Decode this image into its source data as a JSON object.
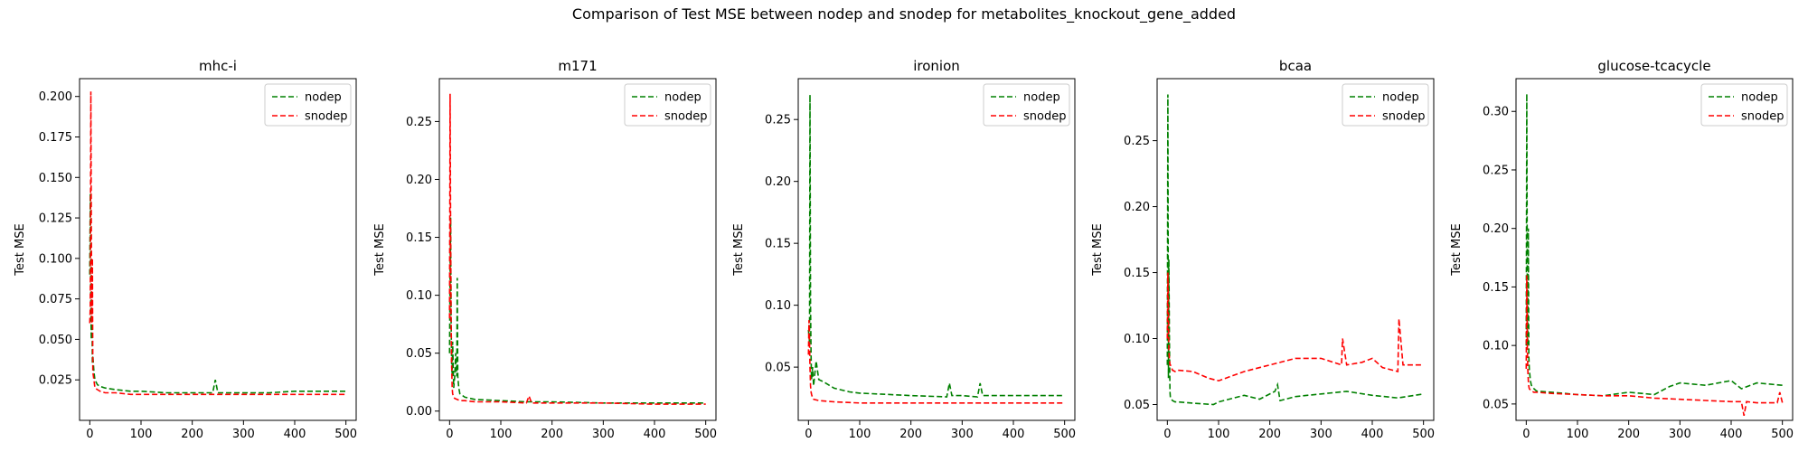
{
  "figure": {
    "suptitle": "Comparison of Test MSE between nodep and snodep for metabolites_knockout_gene_added"
  },
  "colors": {
    "nodep": "#008000",
    "snodep": "#ff0000"
  },
  "chart_data": [
    {
      "type": "line",
      "title": "mhc-i",
      "xlabel": "",
      "ylabel": "Test MSE",
      "xlim": [
        -20,
        520
      ],
      "ylim": [
        0.0,
        0.211
      ],
      "xticks": [
        0,
        100,
        200,
        300,
        400,
        500
      ],
      "yticks": [
        0.025,
        0.05,
        0.075,
        0.1,
        0.125,
        0.15,
        0.175,
        0.2
      ],
      "ytick_labels": [
        "0.025",
        "0.050",
        "0.075",
        "0.100",
        "0.125",
        "0.150",
        "0.175",
        "0.200"
      ],
      "legend": "top-right",
      "series": [
        {
          "name": "nodep",
          "color": "#008000",
          "linestyle": "dashed",
          "x": [
            0,
            1,
            2,
            3,
            4,
            5,
            6,
            8,
            10,
            15,
            20,
            30,
            50,
            80,
            100,
            150,
            200,
            240,
            245,
            250,
            260,
            300,
            350,
            400,
            450,
            500
          ],
          "y": [
            0.09,
            0.14,
            0.07,
            0.05,
            0.08,
            0.035,
            0.04,
            0.03,
            0.025,
            0.022,
            0.021,
            0.02,
            0.019,
            0.018,
            0.018,
            0.017,
            0.017,
            0.017,
            0.025,
            0.017,
            0.017,
            0.017,
            0.017,
            0.018,
            0.018,
            0.018
          ]
        },
        {
          "name": "snodep",
          "color": "#ff0000",
          "linestyle": "dashed",
          "x": [
            0,
            1,
            2,
            3,
            4,
            5,
            6,
            8,
            10,
            15,
            20,
            30,
            50,
            80,
            100,
            150,
            200,
            250,
            300,
            350,
            400,
            450,
            500
          ],
          "y": [
            0.06,
            0.07,
            0.203,
            0.12,
            0.06,
            0.1,
            0.03,
            0.025,
            0.02,
            0.019,
            0.018,
            0.017,
            0.017,
            0.016,
            0.016,
            0.016,
            0.016,
            0.016,
            0.016,
            0.016,
            0.016,
            0.016,
            0.016
          ]
        }
      ]
    },
    {
      "type": "line",
      "title": "m171",
      "xlabel": "",
      "ylabel": "Test MSE",
      "xlim": [
        -20,
        520
      ],
      "ylim": [
        -0.008,
        0.287
      ],
      "xticks": [
        0,
        100,
        200,
        300,
        400,
        500
      ],
      "yticks": [
        0.0,
        0.05,
        0.1,
        0.15,
        0.2,
        0.25
      ],
      "ytick_labels": [
        "0.00",
        "0.05",
        "0.10",
        "0.15",
        "0.20",
        "0.25"
      ],
      "legend": "top-right",
      "series": [
        {
          "name": "nodep",
          "color": "#008000",
          "linestyle": "dashed",
          "x": [
            0,
            1,
            2,
            3,
            4,
            5,
            6,
            8,
            10,
            12,
            14,
            15,
            16,
            18,
            20,
            30,
            50,
            100,
            150,
            200,
            300,
            400,
            500
          ],
          "y": [
            0.05,
            0.12,
            0.167,
            0.08,
            0.04,
            0.03,
            0.06,
            0.02,
            0.03,
            0.05,
            0.03,
            0.115,
            0.03,
            0.02,
            0.015,
            0.012,
            0.01,
            0.009,
            0.008,
            0.008,
            0.007,
            0.007,
            0.007
          ]
        },
        {
          "name": "snodep",
          "color": "#ff0000",
          "linestyle": "dashed",
          "x": [
            0,
            1,
            2,
            3,
            4,
            5,
            6,
            8,
            10,
            15,
            20,
            30,
            50,
            100,
            150,
            155,
            160,
            200,
            300,
            400,
            500
          ],
          "y": [
            0.08,
            0.274,
            0.15,
            0.08,
            0.04,
            0.02,
            0.015,
            0.012,
            0.011,
            0.01,
            0.009,
            0.009,
            0.008,
            0.008,
            0.007,
            0.013,
            0.007,
            0.007,
            0.007,
            0.006,
            0.006
          ]
        }
      ]
    },
    {
      "type": "line",
      "title": "ironion",
      "xlabel": "",
      "ylabel": "Test MSE",
      "xlim": [
        -20,
        520
      ],
      "ylim": [
        0.007,
        0.283
      ],
      "xticks": [
        0,
        100,
        200,
        300,
        400,
        500
      ],
      "yticks": [
        0.05,
        0.1,
        0.15,
        0.2,
        0.25
      ],
      "ytick_labels": [
        "0.05",
        "0.10",
        "0.15",
        "0.20",
        "0.25"
      ],
      "legend": "top-right",
      "series": [
        {
          "name": "nodep",
          "color": "#008000",
          "linestyle": "dashed",
          "x": [
            0,
            2,
            3,
            4,
            5,
            6,
            8,
            10,
            15,
            20,
            30,
            50,
            80,
            100,
            150,
            200,
            270,
            275,
            280,
            300,
            330,
            335,
            340,
            400,
            500
          ],
          "y": [
            0.08,
            0.07,
            0.27,
            0.1,
            0.06,
            0.04,
            0.05,
            0.035,
            0.055,
            0.04,
            0.038,
            0.033,
            0.03,
            0.029,
            0.028,
            0.027,
            0.026,
            0.037,
            0.027,
            0.027,
            0.026,
            0.037,
            0.027,
            0.027,
            0.027
          ]
        },
        {
          "name": "snodep",
          "color": "#ff0000",
          "linestyle": "dashed",
          "x": [
            0,
            1,
            2,
            3,
            4,
            5,
            6,
            8,
            10,
            20,
            50,
            100,
            150,
            200,
            300,
            400,
            500
          ],
          "y": [
            0.06,
            0.088,
            0.07,
            0.05,
            0.035,
            0.03,
            0.028,
            0.025,
            0.024,
            0.023,
            0.022,
            0.021,
            0.021,
            0.021,
            0.021,
            0.021,
            0.021
          ]
        }
      ]
    },
    {
      "type": "line",
      "title": "bcaa",
      "xlabel": "",
      "ylabel": "Test MSE",
      "xlim": [
        -20,
        520
      ],
      "ylim": [
        0.038,
        0.297
      ],
      "xticks": [
        0,
        100,
        200,
        300,
        400,
        500
      ],
      "yticks": [
        0.05,
        0.1,
        0.15,
        0.2,
        0.25
      ],
      "ytick_labels": [
        "0.05",
        "0.10",
        "0.15",
        "0.20",
        "0.25"
      ],
      "legend": "top-right",
      "series": [
        {
          "name": "nodep",
          "color": "#008000",
          "linestyle": "dashed",
          "x": [
            0,
            1,
            2,
            3,
            4,
            5,
            6,
            8,
            10,
            15,
            20,
            50,
            90,
            100,
            150,
            180,
            210,
            215,
            220,
            250,
            300,
            350,
            400,
            450,
            500
          ],
          "y": [
            0.08,
            0.285,
            0.07,
            0.16,
            0.1,
            0.06,
            0.055,
            0.054,
            0.053,
            0.052,
            0.052,
            0.051,
            0.05,
            0.052,
            0.057,
            0.054,
            0.06,
            0.065,
            0.053,
            0.056,
            0.058,
            0.06,
            0.057,
            0.055,
            0.058
          ]
        },
        {
          "name": "snodep",
          "color": "#ff0000",
          "linestyle": "dashed",
          "x": [
            0,
            1,
            2,
            3,
            4,
            5,
            6,
            8,
            10,
            15,
            20,
            50,
            80,
            100,
            150,
            200,
            250,
            300,
            340,
            342,
            350,
            380,
            400,
            420,
            450,
            452,
            460,
            500
          ],
          "y": [
            0.1,
            0.15,
            0.12,
            0.09,
            0.085,
            0.08,
            0.08,
            0.078,
            0.076,
            0.075,
            0.076,
            0.075,
            0.07,
            0.068,
            0.075,
            0.08,
            0.085,
            0.085,
            0.08,
            0.1,
            0.08,
            0.082,
            0.085,
            0.078,
            0.075,
            0.115,
            0.08,
            0.08
          ]
        }
      ]
    },
    {
      "type": "line",
      "title": "glucose-tcacycle",
      "xlabel": "",
      "ylabel": "Test MSE",
      "xlim": [
        -20,
        520
      ],
      "ylim": [
        0.036,
        0.328
      ],
      "xticks": [
        0,
        100,
        200,
        300,
        400,
        500
      ],
      "yticks": [
        0.05,
        0.1,
        0.15,
        0.2,
        0.25,
        0.3
      ],
      "ytick_labels": [
        "0.05",
        "0.10",
        "0.15",
        "0.20",
        "0.25",
        "0.30"
      ],
      "legend": "top-right",
      "series": [
        {
          "name": "nodep",
          "color": "#008000",
          "linestyle": "dashed",
          "x": [
            0,
            1,
            2,
            3,
            4,
            5,
            6,
            8,
            10,
            15,
            20,
            50,
            100,
            150,
            200,
            250,
            280,
            300,
            350,
            400,
            420,
            450,
            500
          ],
          "y": [
            0.1,
            0.315,
            0.15,
            0.1,
            0.2,
            0.09,
            0.08,
            0.07,
            0.066,
            0.063,
            0.061,
            0.06,
            0.058,
            0.057,
            0.06,
            0.058,
            0.065,
            0.068,
            0.066,
            0.07,
            0.063,
            0.068,
            0.066
          ]
        },
        {
          "name": "snodep",
          "color": "#ff0000",
          "linestyle": "dashed",
          "x": [
            0,
            1,
            2,
            3,
            4,
            5,
            6,
            8,
            10,
            15,
            20,
            50,
            100,
            150,
            200,
            250,
            300,
            350,
            400,
            420,
            425,
            430,
            450,
            490,
            495,
            500
          ],
          "y": [
            0.08,
            0.16,
            0.1,
            0.08,
            0.07,
            0.065,
            0.063,
            0.062,
            0.061,
            0.06,
            0.06,
            0.059,
            0.058,
            0.057,
            0.057,
            0.055,
            0.054,
            0.053,
            0.052,
            0.052,
            0.04,
            0.052,
            0.051,
            0.051,
            0.06,
            0.051
          ]
        }
      ]
    }
  ]
}
